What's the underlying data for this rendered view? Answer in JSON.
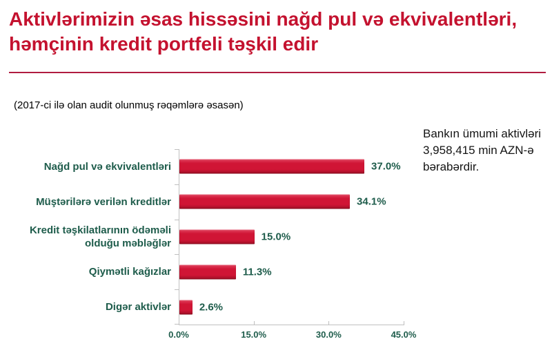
{
  "slide": {
    "title": "Aktivlərimizin əsas hissəsini nağd pul və ekvivalentləri, həmçinin kredit portfeli təşkil edir",
    "subtitle": "(2017-ci ilə olan audit olunmuş rəqəmlərə əsasən)",
    "note": "Bankın ümumi aktivləri 3,958,415 min AZN-ə bərabərdir."
  },
  "colors": {
    "title_red": "#C4122F",
    "divider_red": "#B01C40",
    "bar_red": "#D01535",
    "bar_red_dark": "#9E0F26",
    "bar_red_light": "#E14560",
    "label_teal": "#1E5C4B",
    "axis_gray": "#BFBFBF"
  },
  "chart_data": {
    "type": "bar",
    "orientation": "horizontal",
    "title": "",
    "xlabel": "",
    "ylabel": "",
    "categories": [
      "Nağd pul və ekvivalentləri",
      "Müştərilərə verilən kreditlər",
      "Kredit təşkilatlarının ödəməli olduğu məbləğlər",
      "Qiymətli kağızlar",
      "Digər aktivlər"
    ],
    "values": [
      37.0,
      34.1,
      15.0,
      11.3,
      2.6
    ],
    "value_labels": [
      "37.0%",
      "34.1%",
      "15.0%",
      "11.3%",
      "2.6%"
    ],
    "x_tick_labels": [
      "0.0%",
      "15.0%",
      "30.0%",
      "45.0%"
    ],
    "x_tick_values": [
      0,
      15,
      30,
      45
    ],
    "xlim": [
      0,
      45
    ],
    "grid": false,
    "legend": false,
    "bar_color": "#D01535",
    "label_color": "#1E5C4B"
  }
}
